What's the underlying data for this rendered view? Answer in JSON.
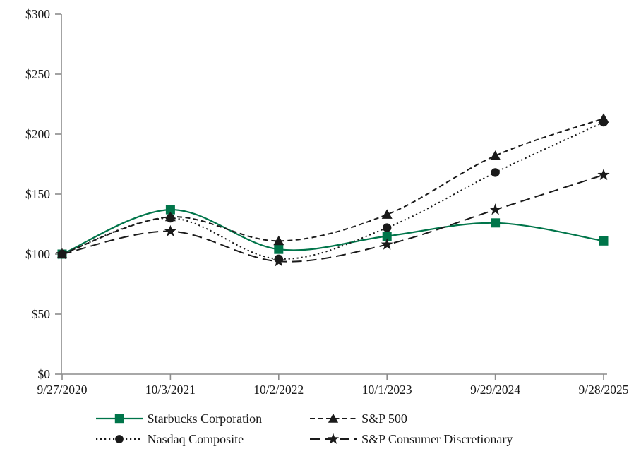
{
  "chart_data": {
    "type": "line",
    "title": "",
    "xlabel": "",
    "ylabel": "",
    "x_labels": [
      "9/27/2020",
      "10/3/2021",
      "10/2/2022",
      "10/1/2023",
      "9/29/2024",
      "9/28/2025"
    ],
    "y_tick_values": [
      0,
      50,
      100,
      150,
      200,
      250,
      300
    ],
    "y_tick_labels": [
      "$0",
      "$50",
      "$100",
      "$150",
      "$200",
      "$250",
      "$300"
    ],
    "ylim": [
      0,
      300
    ],
    "grid": false,
    "line_smoothing": true,
    "legend_position": "bottom",
    "series": [
      {
        "name": "Starbucks Corporation",
        "marker": "square",
        "line_style": "solid",
        "color": "#00754a",
        "values": [
          100,
          137,
          104,
          115,
          126,
          111
        ]
      },
      {
        "name": "S&P 500",
        "marker": "triangle",
        "line_style": "dashed",
        "color": "#1a1a1a",
        "values": [
          100,
          131,
          111,
          133,
          182,
          213
        ]
      },
      {
        "name": "Nasdaq Composite",
        "marker": "circle",
        "line_style": "dotted",
        "color": "#1a1a1a",
        "values": [
          100,
          130,
          96,
          122,
          168,
          210
        ]
      },
      {
        "name": "S&P Consumer Discretionary",
        "marker": "star",
        "line_style": "longdash",
        "color": "#1a1a1a",
        "values": [
          100,
          119,
          94,
          108,
          137,
          166
        ]
      }
    ]
  },
  "colors": {
    "axis": "#8c8c8c",
    "text": "#1a1a1a",
    "background": "#ffffff"
  }
}
